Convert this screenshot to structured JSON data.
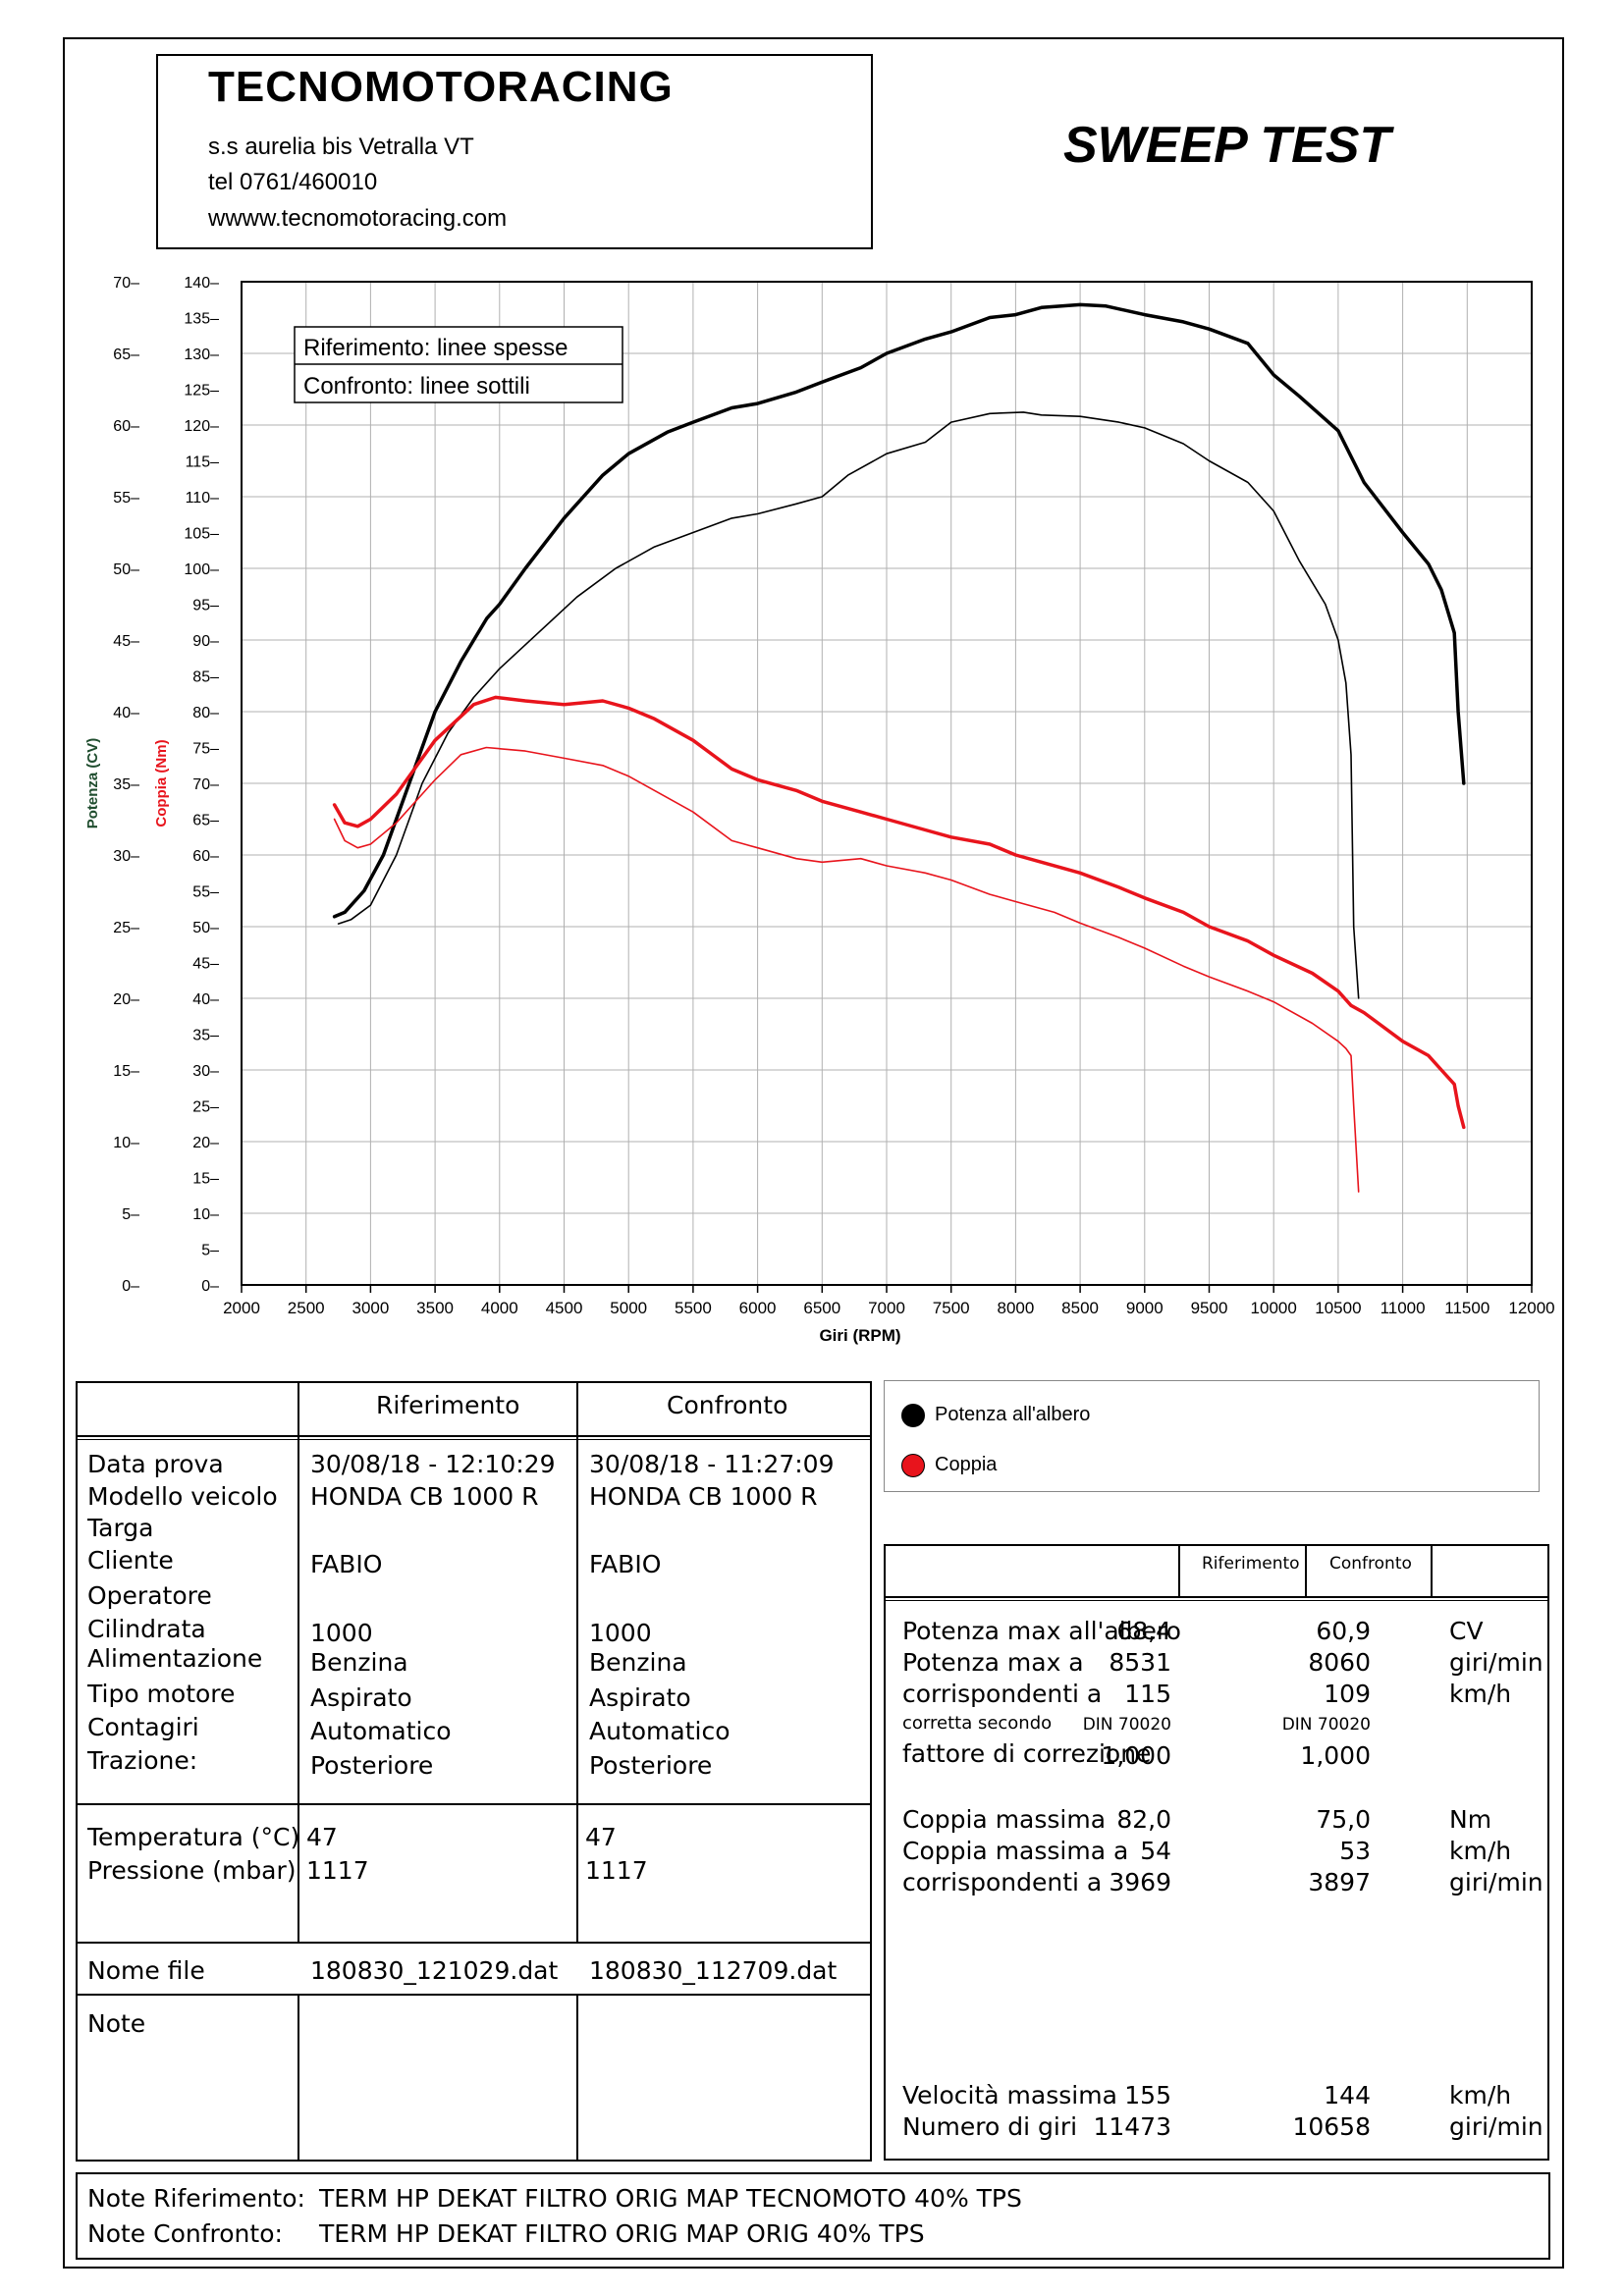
{
  "header": {
    "company": "TECNOMOTORACING",
    "address": "s.s aurelia bis  Vetralla  VT",
    "phone": "tel 0761/460010",
    "website": "wwww.tecnomotoracing.com",
    "title": "SWEEP TEST"
  },
  "chart_data": {
    "type": "line",
    "xlabel": "Giri (RPM)",
    "ylabel_power": "Potenza (CV)",
    "ylabel_torque": "Coppia (Nm)",
    "xlim": [
      2000,
      12000
    ],
    "ylim_power": [
      0,
      70
    ],
    "ylim_torque": [
      0,
      140
    ],
    "x_ticks": [
      "2000",
      "2500",
      "3000",
      "3500",
      "4000",
      "4500",
      "5000",
      "5500",
      "6000",
      "6500",
      "7000",
      "7500",
      "8000",
      "8500",
      "9000",
      "9500",
      "10000",
      "10500",
      "11000",
      "11500",
      "12000"
    ],
    "power_ticks": [
      "0",
      "5",
      "10",
      "15",
      "20",
      "25",
      "30",
      "35",
      "40",
      "45",
      "50",
      "55",
      "60",
      "65",
      "70"
    ],
    "torque_ticks": [
      "0",
      "5",
      "10",
      "15",
      "20",
      "25",
      "30",
      "35",
      "40",
      "45",
      "50",
      "55",
      "60",
      "65",
      "70",
      "75",
      "80",
      "85",
      "90",
      "95",
      "100",
      "105",
      "110",
      "115",
      "120",
      "125",
      "130",
      "135",
      "140"
    ],
    "annotation": [
      "Riferimento: linee spesse",
      "Confronto: linee sottili"
    ],
    "grid": true,
    "colors": {
      "power": "#000000",
      "torque": "#e8141c"
    },
    "series": [
      {
        "name": "Potenza all'albero",
        "run": "Riferimento",
        "axis": "power",
        "color": "#000000",
        "width": 3.5,
        "x": [
          2720,
          2800,
          2950,
          3100,
          3300,
          3500,
          3700,
          3900,
          4000,
          4200,
          4500,
          4800,
          5000,
          5300,
          5500,
          5800,
          6000,
          6300,
          6500,
          6800,
          7000,
          7300,
          7500,
          7800,
          8000,
          8200,
          8500,
          8700,
          9000,
          9300,
          9500,
          9800,
          10000,
          10200,
          10500,
          10700,
          11000,
          11200,
          11300,
          11400,
          11430,
          11473
        ],
        "y": [
          25.7,
          26.0,
          27.5,
          30.0,
          35.0,
          40.0,
          43.5,
          46.5,
          47.5,
          50.0,
          53.5,
          56.5,
          58.0,
          59.5,
          60.2,
          61.2,
          61.5,
          62.3,
          63.0,
          64.0,
          65.0,
          66.0,
          66.5,
          67.5,
          67.7,
          68.2,
          68.4,
          68.3,
          67.7,
          67.2,
          66.7,
          65.7,
          63.5,
          62.0,
          59.6,
          56.0,
          52.5,
          50.3,
          48.5,
          45.5,
          40.0,
          35.0
        ]
      },
      {
        "name": "Potenza all'albero",
        "run": "Confronto",
        "axis": "power",
        "color": "#000000",
        "width": 1.6,
        "x": [
          2750,
          2850,
          3000,
          3200,
          3400,
          3600,
          3800,
          4000,
          4300,
          4600,
          4900,
          5200,
          5500,
          5800,
          6000,
          6300,
          6500,
          6700,
          7000,
          7300,
          7500,
          7800,
          8060,
          8200,
          8500,
          8800,
          9000,
          9300,
          9500,
          9800,
          10000,
          10200,
          10400,
          10500,
          10560,
          10600,
          10620,
          10658
        ],
        "y": [
          25.2,
          25.5,
          26.5,
          30.0,
          35.0,
          38.5,
          41.0,
          43.0,
          45.5,
          48.0,
          50.0,
          51.5,
          52.5,
          53.5,
          53.8,
          54.5,
          55.0,
          56.5,
          58.0,
          58.8,
          60.2,
          60.8,
          60.9,
          60.7,
          60.6,
          60.2,
          59.8,
          58.7,
          57.5,
          56.0,
          54.0,
          50.5,
          47.5,
          45.0,
          42.0,
          37.0,
          25.0,
          20.0
        ]
      },
      {
        "name": "Coppia",
        "run": "Riferimento",
        "axis": "torque",
        "color": "#e8141c",
        "width": 3.5,
        "x": [
          2720,
          2800,
          2900,
          3000,
          3200,
          3500,
          3800,
          3969,
          4200,
          4500,
          4800,
          5000,
          5200,
          5500,
          5800,
          6000,
          6300,
          6500,
          6800,
          7000,
          7300,
          7500,
          7800,
          8000,
          8200,
          8500,
          8800,
          9000,
          9300,
          9500,
          9800,
          10000,
          10300,
          10500,
          10600,
          10700,
          11000,
          11200,
          11300,
          11400,
          11430,
          11473
        ],
        "y": [
          67.0,
          64.5,
          64.0,
          65.0,
          68.5,
          76.0,
          81.0,
          82.0,
          81.5,
          81.0,
          81.5,
          80.5,
          79.0,
          76.0,
          72.0,
          70.5,
          69.0,
          67.5,
          66.0,
          65.0,
          63.5,
          62.5,
          61.5,
          60.0,
          59.0,
          57.5,
          55.5,
          54.0,
          52.0,
          50.0,
          48.0,
          46.0,
          43.5,
          41.0,
          39.0,
          38.0,
          34.0,
          32.0,
          30.0,
          28.0,
          25.0,
          22.0
        ]
      },
      {
        "name": "Coppia",
        "run": "Confronto",
        "axis": "torque",
        "color": "#e8141c",
        "width": 1.6,
        "x": [
          2720,
          2800,
          2900,
          3000,
          3200,
          3500,
          3700,
          3897,
          4200,
          4500,
          4800,
          5000,
          5300,
          5500,
          5800,
          6000,
          6300,
          6500,
          6800,
          7000,
          7300,
          7500,
          7800,
          8000,
          8300,
          8500,
          8800,
          9000,
          9300,
          9500,
          9800,
          10000,
          10300,
          10500,
          10560,
          10600,
          10620,
          10658
        ],
        "y": [
          65.0,
          62.0,
          61.0,
          61.5,
          64.5,
          70.5,
          74.0,
          75.0,
          74.5,
          73.5,
          72.5,
          71.0,
          68.0,
          66.0,
          62.0,
          61.0,
          59.5,
          59.0,
          59.5,
          58.5,
          57.5,
          56.5,
          54.5,
          53.5,
          52.0,
          50.5,
          48.5,
          47.0,
          44.5,
          43.0,
          41.0,
          39.5,
          36.5,
          34.0,
          33.0,
          32.0,
          25.0,
          13.0
        ]
      }
    ]
  },
  "info_table": {
    "col_ref": "Riferimento",
    "col_conf": "Confronto",
    "labels": [
      "Data prova",
      "Modello veicolo",
      "Targa",
      "Cliente",
      "Operatore",
      "Cilindrata",
      "Alimentazione",
      "Tipo motore",
      "Contagiri",
      "Trazione:"
    ],
    "ref": {
      "date": "30/08/18 - 12:10:29",
      "model": "HONDA CB 1000 R",
      "client": "FABIO",
      "cc": "1000",
      "fuel": "Benzina",
      "engine": "Aspirato",
      "rpm_counter": "Automatico",
      "traction": "Posteriore"
    },
    "conf": {
      "date": "30/08/18 - 11:27:09",
      "model": "HONDA CB 1000 R",
      "client": "FABIO",
      "cc": "1000",
      "fuel": "Benzina",
      "engine": "Aspirato",
      "rpm_counter": "Automatico",
      "traction": "Posteriore"
    },
    "temp_label": "Temperatura (°C)",
    "pressure_label": "Pressione (mbar)",
    "ref_temp": "47",
    "ref_pressure": "1117",
    "conf_temp": "47",
    "conf_pressure": "1117",
    "file_label": "Nome file",
    "ref_file": "180830_121029.dat",
    "conf_file": "180830_112709.dat",
    "note_label": "Note"
  },
  "legend": {
    "power": "Potenza all'albero",
    "torque": "Coppia"
  },
  "results": {
    "col_ref": "Riferimento",
    "col_conf": "Confronto",
    "rows": [
      {
        "label": "Potenza max all'albero",
        "ref": "68,4",
        "conf": "60,9",
        "unit": "CV"
      },
      {
        "label": "Potenza max a",
        "ref": "8531",
        "conf": "8060",
        "unit": "giri/min"
      },
      {
        "label": "corrispondenti a",
        "ref": "115",
        "conf": "109",
        "unit": "km/h"
      },
      {
        "label": "corretta secondo",
        "ref": "DIN 70020",
        "conf": "DIN 70020",
        "unit": ""
      },
      {
        "label": "fattore di correzione",
        "ref": "1,000",
        "conf": "1,000",
        "unit": ""
      },
      {
        "label": "Coppia massima",
        "ref": "82,0",
        "conf": "75,0",
        "unit": "Nm"
      },
      {
        "label": "Coppia massima a",
        "ref": "54",
        "conf": "53",
        "unit": "km/h"
      },
      {
        "label": "corrispondenti a",
        "ref": "3969",
        "conf": "3897",
        "unit": "giri/min"
      },
      {
        "label": "Velocità massima",
        "ref": "155",
        "conf": "144",
        "unit": "km/h"
      },
      {
        "label": "Numero di giri",
        "ref": "11473",
        "conf": "10658",
        "unit": "giri/min"
      }
    ]
  },
  "notes": {
    "ref_label": "Note Riferimento:",
    "ref_text": "TERM HP DEKAT  FILTRO ORIG MAP TECNOMOTO 40% TPS",
    "conf_label": "Note Confronto:",
    "conf_text": "TERM HP DEKAT  FILTRO ORIG MAP ORIG 40% TPS"
  }
}
